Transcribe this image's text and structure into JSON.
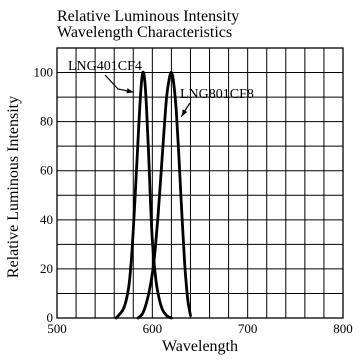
{
  "chart_data": {
    "type": "line",
    "title_lines": [
      "Relative Luminous Intensity",
      "Wavelength Characteristics"
    ],
    "xlabel": "Wavelength",
    "ylabel": "Relative Luminous Intensity",
    "xlim": [
      500,
      800
    ],
    "ylim": [
      0,
      110
    ],
    "xticks": [
      500,
      600,
      700,
      800
    ],
    "yticks": [
      0,
      20,
      40,
      60,
      80,
      100
    ],
    "x_minor_step": 20,
    "y_minor_step": 10,
    "grid": true,
    "line_color": "#000000",
    "series": [
      {
        "name": "LNG401CF4",
        "x": [
          562,
          570,
          575,
          578,
          580,
          582,
          584,
          586,
          588,
          590,
          592,
          594,
          596,
          598,
          600,
          603,
          606,
          610,
          615,
          620
        ],
        "y": [
          0,
          4,
          12,
          24,
          36,
          50,
          65,
          80,
          93,
          100,
          97,
          85,
          68,
          48,
          32,
          18,
          10,
          4,
          1,
          0
        ]
      },
      {
        "name": "LNG801CF8",
        "x": [
          585,
          590,
          595,
          600,
          603,
          606,
          609,
          612,
          615,
          618,
          620,
          622,
          625,
          628,
          631,
          634,
          637,
          640
        ],
        "y": [
          0,
          2,
          8,
          18,
          28,
          42,
          58,
          75,
          90,
          98,
          100,
          97,
          85,
          65,
          42,
          22,
          8,
          1
        ]
      }
    ]
  }
}
